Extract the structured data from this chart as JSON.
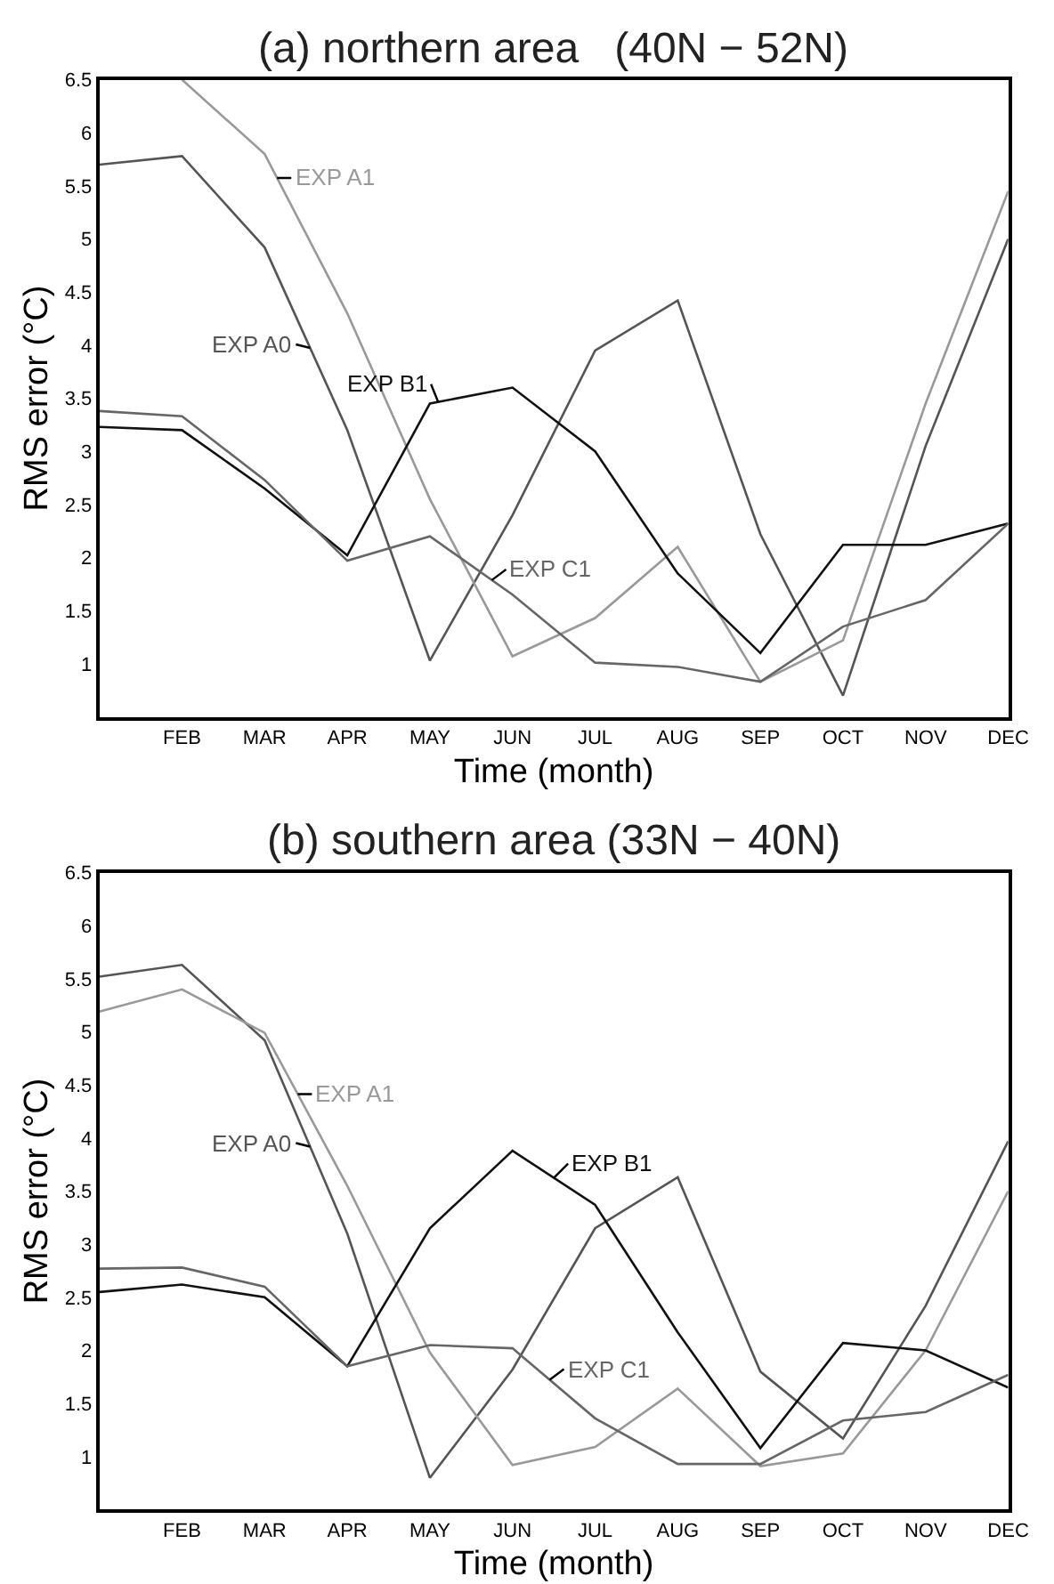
{
  "chart_data": [
    {
      "type": "line",
      "title": "(a) northern area   (40N − 52N)",
      "xlabel": "Time (month)",
      "ylabel": "RMS error (°C)",
      "categories": [
        null,
        "FEB",
        "MAR",
        "APR",
        "MAY",
        "JUN",
        "JUL",
        "AUG",
        "SEP",
        "OCT",
        "NOV",
        "DEC"
      ],
      "ylim": [
        0.5,
        6.5
      ],
      "yticks": [
        1,
        1.5,
        2,
        2.5,
        3,
        3.5,
        4,
        4.5,
        5,
        5.5,
        6,
        6.5
      ],
      "legend": false,
      "marker": "none",
      "line_style": "solid",
      "series": [
        {
          "name": "EXP A0",
          "color": "#555555",
          "values": [
            5.7,
            5.78,
            4.92,
            3.2,
            1.03,
            2.4,
            3.95,
            4.42,
            2.22,
            0.7,
            3.05,
            5.0
          ]
        },
        {
          "name": "EXP A1",
          "color": "#999999",
          "values": [
            null,
            6.5,
            5.8,
            4.3,
            2.55,
            1.07,
            1.43,
            2.1,
            0.83,
            1.22,
            3.45,
            5.45
          ]
        },
        {
          "name": "EXP B1",
          "color": "#111111",
          "values": [
            3.23,
            3.2,
            2.65,
            2.02,
            3.45,
            3.6,
            3.0,
            1.85,
            1.1,
            2.12,
            2.12,
            2.32
          ]
        },
        {
          "name": "EXP C1",
          "color": "#666666",
          "values": [
            3.38,
            3.33,
            2.73,
            1.97,
            2.2,
            1.65,
            1.01,
            0.97,
            0.83,
            1.35,
            1.6,
            2.32
          ]
        }
      ]
    },
    {
      "type": "line",
      "title": "(b) southern area (33N − 40N)",
      "xlabel": "Time (month)",
      "ylabel": "RMS error (°C)",
      "categories": [
        null,
        "FEB",
        "MAR",
        "APR",
        "MAY",
        "JUN",
        "JUL",
        "AUG",
        "SEP",
        "OCT",
        "NOV",
        "DEC"
      ],
      "ylim": [
        0.5,
        6.5
      ],
      "yticks": [
        1,
        1.5,
        2,
        2.5,
        3,
        3.5,
        4,
        4.5,
        5,
        5.5,
        6,
        6.5
      ],
      "legend": false,
      "marker": "none",
      "line_style": "solid",
      "series": [
        {
          "name": "EXP A0",
          "color": "#555555",
          "values": [
            5.52,
            5.63,
            4.92,
            3.1,
            0.8,
            1.82,
            3.15,
            3.63,
            1.8,
            1.17,
            2.42,
            3.97
          ]
        },
        {
          "name": "EXP A1",
          "color": "#999999",
          "values": [
            5.19,
            5.4,
            4.99,
            3.55,
            1.98,
            0.92,
            1.09,
            1.64,
            0.91,
            1.03,
            2.0,
            3.5
          ]
        },
        {
          "name": "EXP B1",
          "color": "#111111",
          "values": [
            2.55,
            2.62,
            2.5,
            1.85,
            3.15,
            3.88,
            3.37,
            2.17,
            1.08,
            2.07,
            2.0,
            1.65
          ]
        },
        {
          "name": "EXP C1",
          "color": "#666666",
          "values": [
            2.77,
            2.78,
            2.6,
            1.85,
            2.05,
            2.02,
            1.36,
            0.93,
            0.93,
            1.34,
            1.42,
            1.77
          ]
        }
      ]
    }
  ]
}
